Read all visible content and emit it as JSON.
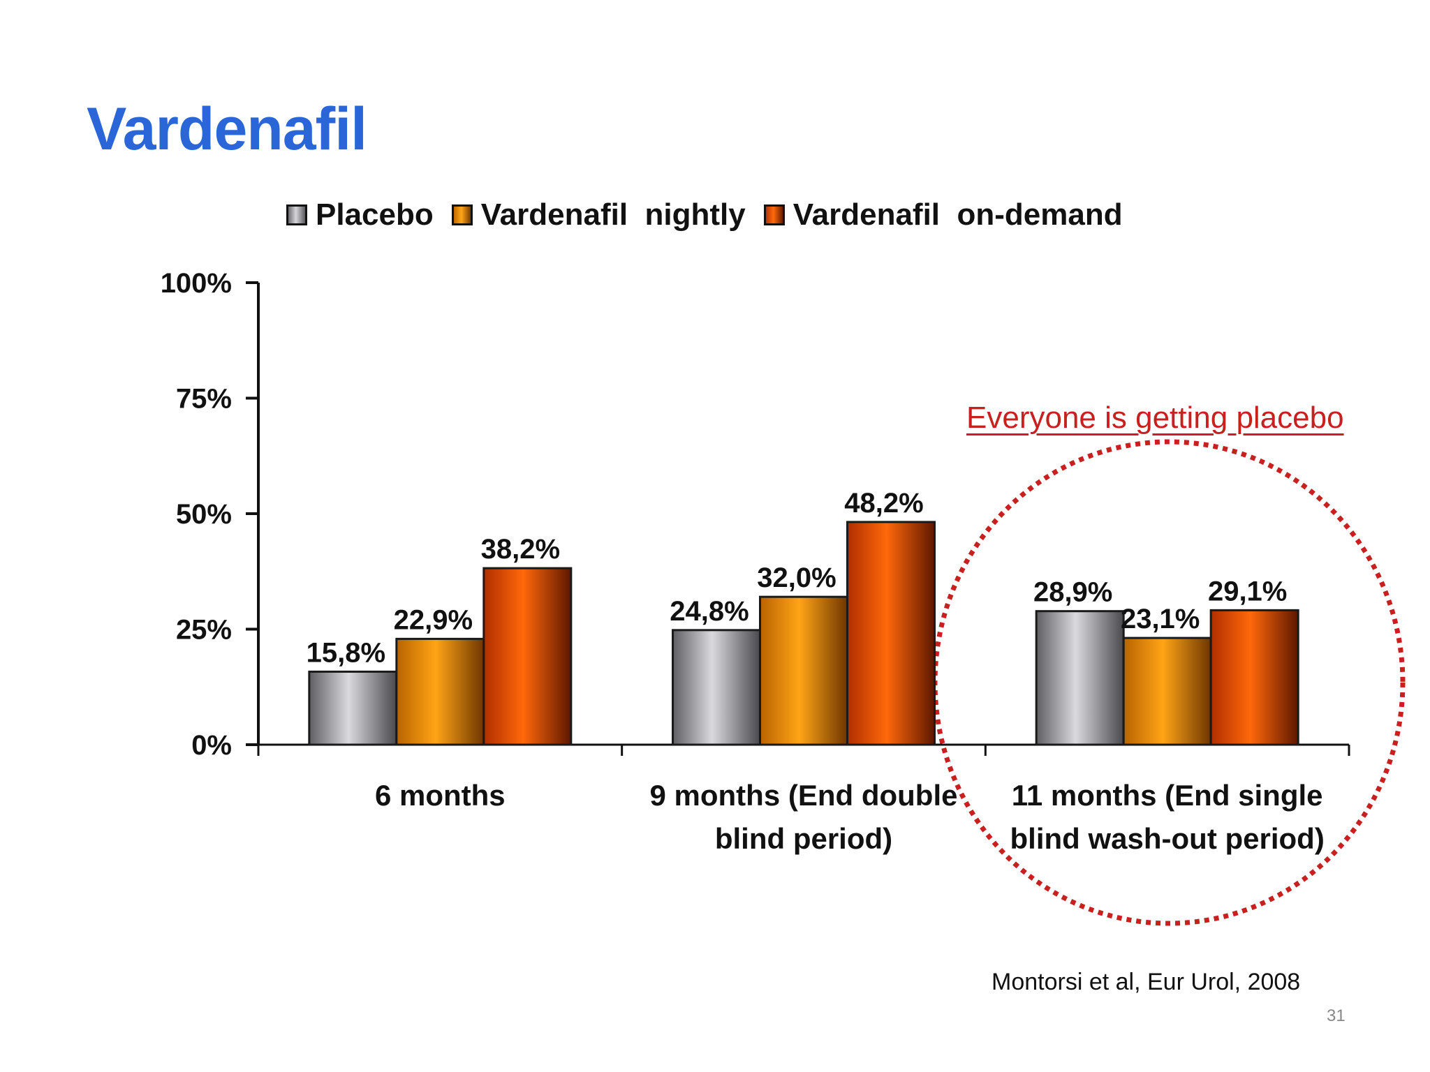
{
  "slide": {
    "title": "Vardenafil",
    "annotation": "Everyone is getting placebo",
    "citation": "Montorsi et al, Eur Urol, 2008",
    "page_number": "31"
  },
  "colors": {
    "title": "#2a66d8",
    "annotation": "#c8201f",
    "placebo": "#a7a7ab",
    "nightly": "#f39500",
    "on_demand": "#f05a0a"
  },
  "chart_data": {
    "type": "bar",
    "title": "",
    "xlabel": "",
    "ylabel": "",
    "ylim": [
      0,
      100
    ],
    "y_ticks": [
      "0%",
      "25%",
      "50%",
      "75%",
      "100%"
    ],
    "y_tick_values": [
      0,
      25,
      50,
      75,
      100
    ],
    "grid": false,
    "legend_position": "top",
    "categories": [
      [
        "6 months"
      ],
      [
        "9 months (End double",
        "blind period)"
      ],
      [
        "11 months (End single",
        "blind wash-out period)"
      ]
    ],
    "series": [
      {
        "name": "Placebo",
        "values": [
          15.8,
          24.8,
          28.9
        ],
        "labels": [
          "15,8%",
          "24,8%",
          "28,9%"
        ],
        "color_key": "placebo"
      },
      {
        "name": "Vardenafil  nightly",
        "values": [
          22.9,
          32.0,
          23.1
        ],
        "labels": [
          "22,9%",
          "32,0%",
          "23,1%"
        ],
        "color_key": "nightly"
      },
      {
        "name": "Vardenafil  on-demand",
        "values": [
          38.2,
          48.2,
          29.1
        ],
        "labels": [
          "38,2%",
          "48,2%",
          "29,1%"
        ],
        "color_key": "on_demand"
      }
    ]
  }
}
